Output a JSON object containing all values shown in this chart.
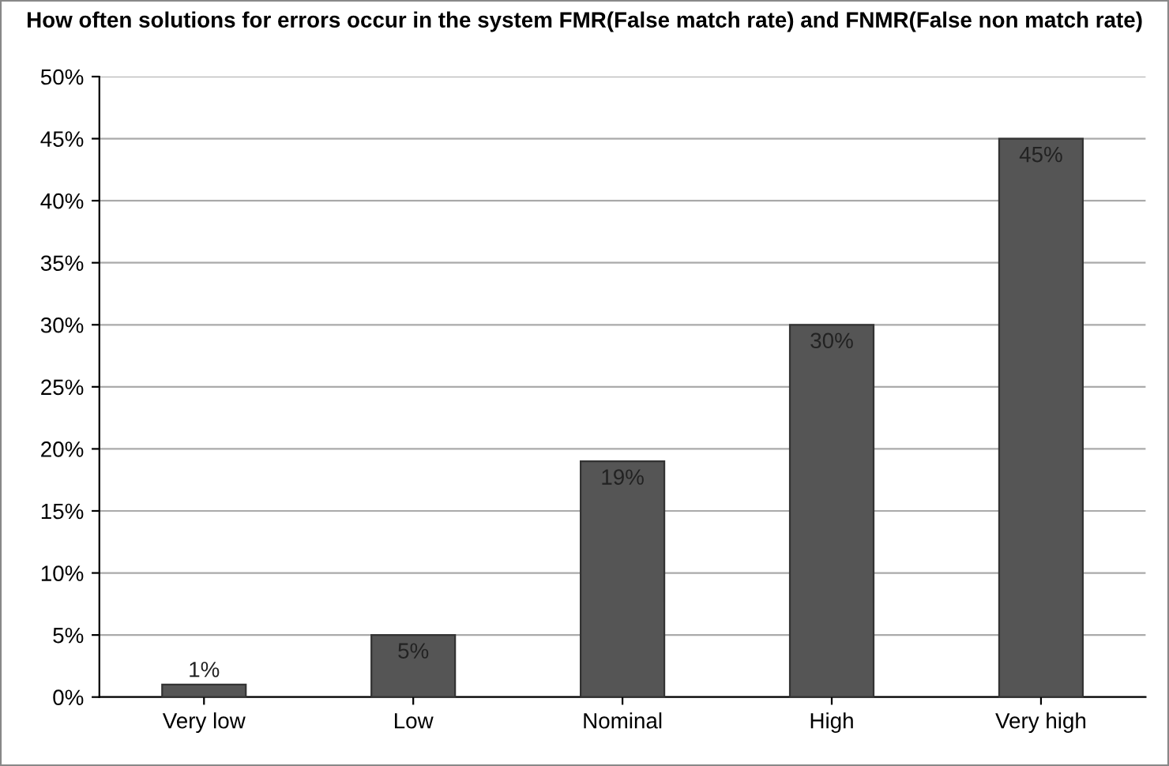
{
  "chart_data": {
    "type": "bar",
    "title": "How often solutions for errors occur in the system FMR(False match rate) and FNMR(False non match rate)",
    "categories": [
      "Very low",
      "Low",
      "Nominal",
      "High",
      "Very high"
    ],
    "values": [
      1,
      5,
      19,
      30,
      45
    ],
    "value_labels": [
      "1%",
      "5%",
      "19%",
      "30%",
      "45%"
    ],
    "color": "#555555",
    "ylim": [
      0,
      50
    ],
    "yticks": [
      {
        "value": 0,
        "label": "0%"
      },
      {
        "value": 5,
        "label": "5%"
      },
      {
        "value": 10,
        "label": "10%"
      },
      {
        "value": 15,
        "label": "15%"
      },
      {
        "value": 20,
        "label": "20%"
      },
      {
        "value": 25,
        "label": "25%"
      },
      {
        "value": 30,
        "label": "30%"
      },
      {
        "value": 35,
        "label": "35%"
      },
      {
        "value": 40,
        "label": "40%"
      },
      {
        "value": 45,
        "label": "45%"
      },
      {
        "value": 50,
        "label": "50%"
      }
    ],
    "grid": "y"
  }
}
